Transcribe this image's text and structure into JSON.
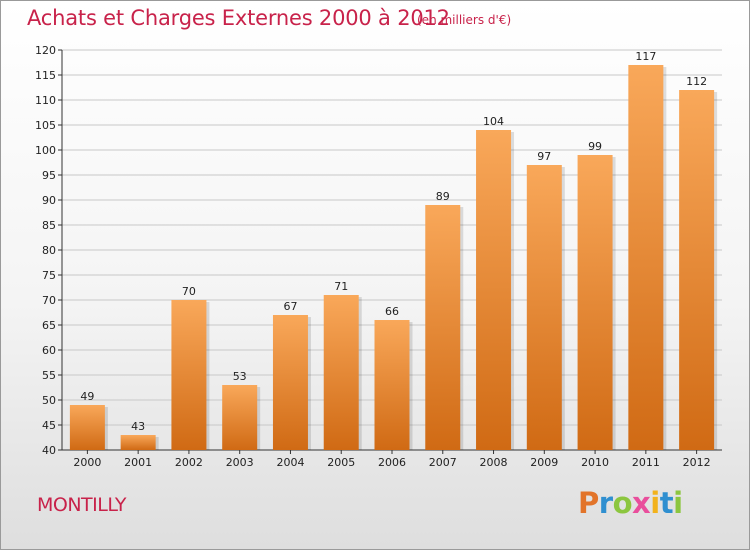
{
  "title": "Achats et Charges Externes 2000 à 2012",
  "subtitle": "(en milliers d'€)",
  "city": "MONTILLY",
  "logo": {
    "letters": [
      "P",
      "r",
      "o",
      "x",
      "i",
      "t",
      "i"
    ],
    "colors": [
      "#e2742a",
      "#2f8fd0",
      "#8cc63f",
      "#e94e9c",
      "#f2b21c",
      "#2f8fd0",
      "#8cc63f"
    ]
  },
  "colors": {
    "title": "#c8224a",
    "bar_top": "#f9a85a",
    "bar_bottom": "#d06a14",
    "grid": "#c8c8c8"
  },
  "chart_data": {
    "type": "bar",
    "title": "Achats et Charges Externes 2000 à 2012",
    "subtitle": "(en milliers d'€)",
    "categories": [
      "2000",
      "2001",
      "2002",
      "2003",
      "2004",
      "2005",
      "2006",
      "2007",
      "2008",
      "2009",
      "2010",
      "2011",
      "2012"
    ],
    "values": [
      49,
      43,
      70,
      53,
      67,
      71,
      66,
      89,
      104,
      97,
      99,
      117,
      112
    ],
    "ylim": [
      40,
      120
    ],
    "yticks": [
      40,
      45,
      50,
      55,
      60,
      65,
      70,
      75,
      80,
      85,
      90,
      95,
      100,
      105,
      110,
      115,
      120
    ],
    "grid": true,
    "data_labels": true
  }
}
